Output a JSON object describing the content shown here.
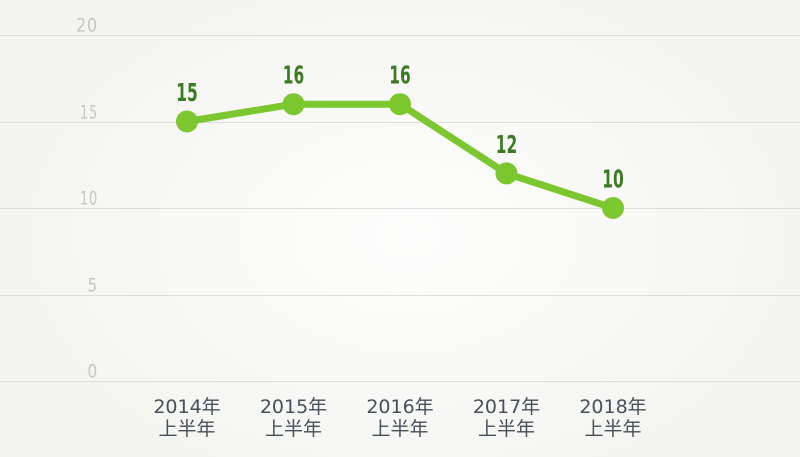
{
  "chart_data": {
    "type": "line",
    "title": "",
    "xlabel": "",
    "ylabel": "",
    "categories": [
      {
        "line1": "2014年",
        "line2": "上半年"
      },
      {
        "line1": "2015年",
        "line2": "上半年"
      },
      {
        "line1": "2016年",
        "line2": "上半年"
      },
      {
        "line1": "2017年",
        "line2": "上半年"
      },
      {
        "line1": "2018年",
        "line2": "上半年"
      }
    ],
    "values": [
      15,
      16,
      16,
      12,
      10
    ],
    "data_labels": [
      "15",
      "16",
      "16",
      "12",
      "10"
    ],
    "yticks": [
      20,
      15,
      10,
      5,
      0
    ],
    "ylim": [
      0,
      20
    ],
    "grid": "horizontal",
    "legend": "none",
    "colors": {
      "line": "#7cc62f",
      "point": "#7cc62f",
      "data_label": "#3d7b23",
      "y_tick_label": "#c8c6c2",
      "x_axis_label": "#46515b",
      "gridline": "#deddda",
      "background": "#f4f4f1"
    }
  }
}
